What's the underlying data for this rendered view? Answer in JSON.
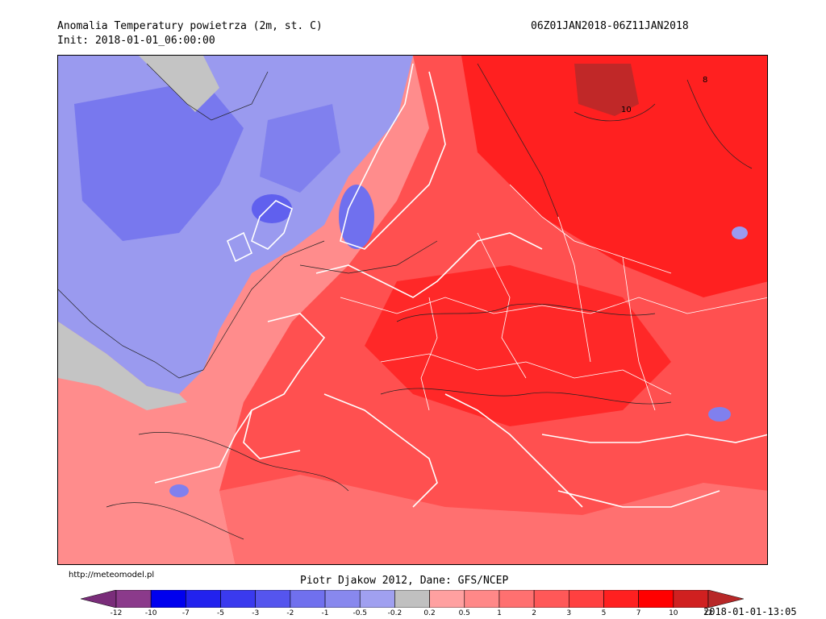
{
  "header": {
    "title": "Anomalia Temperatury powietrza (2m, st. C)",
    "init": "Init: 2018-01-01_06:00:00",
    "period": "06Z01JAN2018-06Z11JAN2018"
  },
  "footer": {
    "site": "http://meteomodel.pl",
    "credit": "Piotr Djakow 2012, Dane: GFS/NCEP",
    "timestamp": "2018-01-01-13:05"
  },
  "map_labels": {
    "label_8": "8",
    "label_10": "10"
  },
  "legend": {
    "ticks": [
      "-12",
      "-10",
      "-7",
      "-5",
      "-3",
      "-2",
      "-1",
      "-0.5",
      "-0.2",
      "0.2",
      "0.5",
      "1",
      "2",
      "3",
      "5",
      "7",
      "10",
      "12"
    ],
    "colors": [
      "#7a2d7a",
      "#8b3a8b",
      "#0000ee",
      "#2222ee",
      "#3a3aee",
      "#5555ee",
      "#7070ee",
      "#8888ee",
      "#a0a0f0",
      "#c0c0c0",
      "#ffa0a0",
      "#ff8888",
      "#ff7070",
      "#ff5858",
      "#ff4040",
      "#ff2020",
      "#ff0000",
      "#d02020",
      "#b82828"
    ]
  },
  "map_colors": {
    "ocean_cold": "#8e8eee",
    "ocean_colder": "#7070ee",
    "neutral": "#c0c0c0",
    "warm_light": "#ff9090",
    "warm": "#ff6060",
    "warm_strong": "#ff3030",
    "hot": "#ff1010",
    "very_hot": "#c02828"
  }
}
